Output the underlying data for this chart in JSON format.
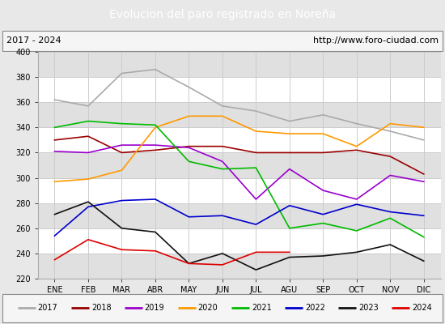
{
  "title": "Evolucion del paro registrado en Noreña",
  "title_color": "#ffffff",
  "title_bg": "#5b8dd9",
  "subtitle_left": "2017 - 2024",
  "subtitle_right": "http://www.foro-ciudad.com",
  "months": [
    "ENE",
    "FEB",
    "MAR",
    "ABR",
    "MAY",
    "JUN",
    "JUL",
    "AGU",
    "SEP",
    "OCT",
    "NOV",
    "DIC"
  ],
  "ylim": [
    220,
    400
  ],
  "yticks": [
    220,
    240,
    260,
    280,
    300,
    320,
    340,
    360,
    380,
    400
  ],
  "series": {
    "2017": {
      "color": "#aaaaaa",
      "values": [
        362,
        357,
        383,
        386,
        372,
        357,
        353,
        345,
        350,
        343,
        337,
        330
      ]
    },
    "2018": {
      "color": "#990000",
      "values": [
        330,
        333,
        320,
        322,
        325,
        325,
        320,
        320,
        320,
        322,
        317,
        303
      ]
    },
    "2019": {
      "color": "#9900cc",
      "values": [
        321,
        320,
        326,
        326,
        324,
        313,
        283,
        307,
        290,
        283,
        302,
        297
      ]
    },
    "2020": {
      "color": "#ff9900",
      "values": [
        297,
        299,
        306,
        340,
        349,
        349,
        337,
        335,
        335,
        325,
        343,
        340
      ]
    },
    "2021": {
      "color": "#00bb00",
      "values": [
        340,
        345,
        343,
        342,
        313,
        307,
        308,
        260,
        264,
        258,
        268,
        253
      ]
    },
    "2022": {
      "color": "#0000cc",
      "values": [
        254,
        277,
        282,
        283,
        269,
        270,
        263,
        278,
        271,
        279,
        273,
        270
      ]
    },
    "2023": {
      "color": "#111111",
      "values": [
        271,
        281,
        260,
        257,
        232,
        240,
        227,
        237,
        238,
        241,
        247,
        234
      ]
    },
    "2024": {
      "color": "#dd0000",
      "values": [
        235,
        251,
        243,
        242,
        232,
        231,
        241,
        241,
        null,
        null,
        null,
        null
      ]
    }
  },
  "bg_color": "#e8e8e8",
  "plot_bg": "#ffffff",
  "grid_color": "#cccccc",
  "band_color": "#e0e0e0"
}
